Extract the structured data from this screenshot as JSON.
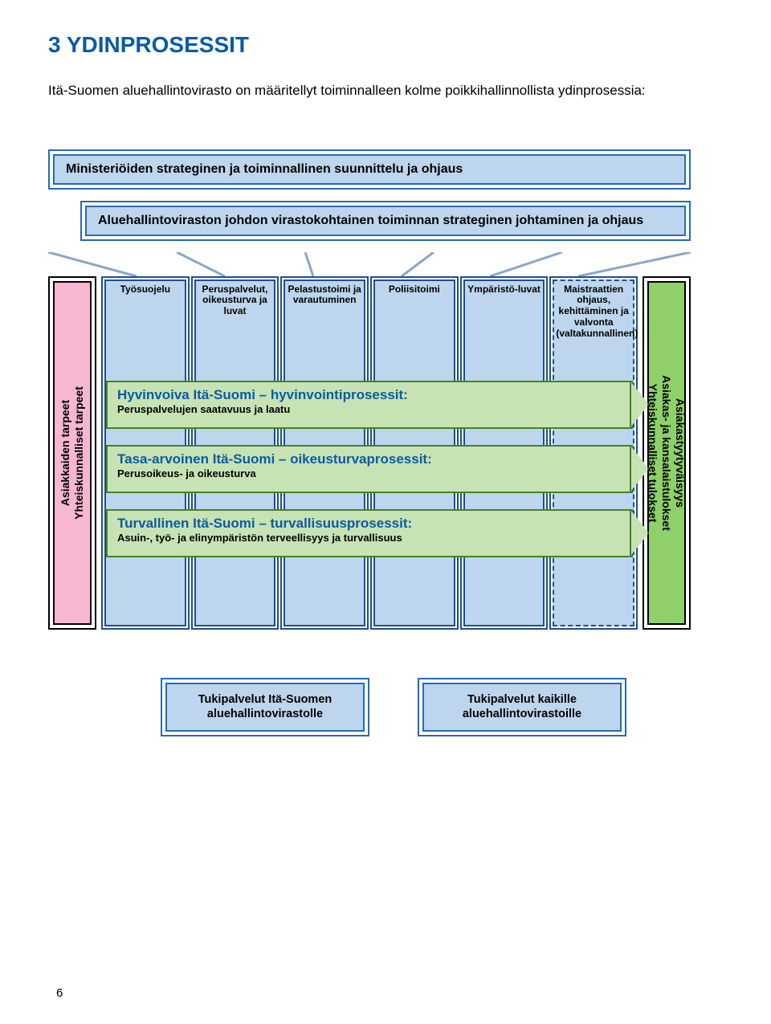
{
  "heading": {
    "text": "3 YDINPROSESSIT",
    "color": "#0b5aa6"
  },
  "intro": "Itä-Suomen aluehallintovirasto on määritellyt toiminnalleen kolme poikkihallinnollista ydinprosessia:",
  "top_boxes": [
    {
      "text": "Ministeriöiden strateginen ja toiminnallinen suunnittelu ja ohjaus",
      "border": "#2a68b5",
      "fill": "#bdd6ee"
    },
    {
      "text": "Aluehallintoviraston johdon virastokohtainen toiminnan strateginen johtaminen ja ohjaus",
      "border": "#2a68b5",
      "fill": "#bdd6ee"
    }
  ],
  "left_box": {
    "fill": "#f7b6d2",
    "lines": [
      "Asiakkaiden tarpeet",
      "Yhteiskunnalliset tarpeet"
    ]
  },
  "right_box": {
    "fill": "#8fd06a",
    "lines": [
      "Asiakastyytyväisyys",
      "Asiakas- ja kansalaistulokset",
      "Yhteiskunnalliset tulokset"
    ]
  },
  "columns": [
    {
      "label": "Työsuojelu",
      "fill": "#bdd6ee",
      "border": "#1f4e8f",
      "dashed": false
    },
    {
      "label": "Peruspalvelut, oikeusturva ja luvat",
      "fill": "#bdd6ee",
      "border": "#1f4e8f",
      "dashed": false
    },
    {
      "label": "Pelastustoimi ja varautuminen",
      "fill": "#bdd6ee",
      "border": "#1f4e8f",
      "dashed": false
    },
    {
      "label": "Poliisitoimi",
      "fill": "#bdd6ee",
      "border": "#1f4e8f",
      "dashed": false
    },
    {
      "label": "Ympäristö-luvat",
      "fill": "#bdd6ee",
      "border": "#1f4e8f",
      "dashed": false
    },
    {
      "label": "Maistraattien ohjaus, kehittäminen ja valvonta (valtakunnallinen)",
      "fill": "#bdd6ee",
      "border": "#1f4e8f",
      "dashed": true
    }
  ],
  "processes": [
    {
      "title": "Hyvinvoiva Itä-Suomi – hyvinvointiprosessit:",
      "sub": "Peruspalvelujen saatavuus ja laatu",
      "title_color": "#0b5aa6",
      "fill": "#c7e3b3",
      "border": "#45802a"
    },
    {
      "title": "Tasa-arvoinen Itä-Suomi – oikeusturvaprosessit:",
      "sub": "Perusoikeus- ja oikeusturva",
      "title_color": "#0b5aa6",
      "fill": "#c7e3b3",
      "border": "#45802a"
    },
    {
      "title": "Turvallinen Itä-Suomi – turvallisuusprosessit:",
      "sub": "Asuin-, työ- ja elinympäristön terveellisyys ja turvallisuus",
      "title_color": "#0b5aa6",
      "fill": "#c7e3b3",
      "border": "#45802a"
    }
  ],
  "support": [
    {
      "l1": "Tukipalvelut Itä-Suomen",
      "l2": "aluehallintovirastolle",
      "border": "#2a68b5",
      "fill": "#bdd6ee"
    },
    {
      "l1": "Tukipalvelut kaikille",
      "l2": "aluehallintovirastoille",
      "border": "#2a68b5",
      "fill": "#bdd6ee"
    }
  ],
  "pagenum": "6",
  "converge_line_color": "#8aa6c7"
}
